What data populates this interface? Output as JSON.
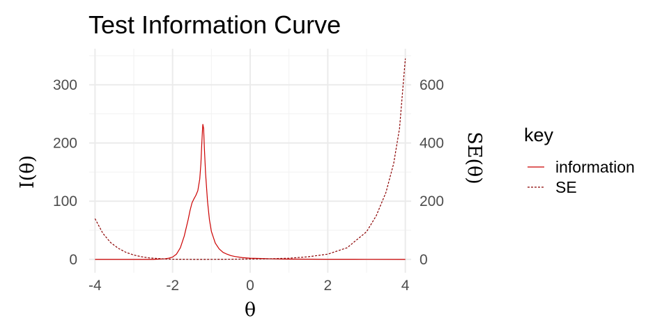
{
  "chart_data": {
    "type": "line",
    "title": "Test Information Curve",
    "xlabel": "θ",
    "ylabel_left": "I(θ)",
    "ylabel_right": "SE(θ)",
    "xlim": [
      -4.15,
      4.15
    ],
    "ylim_left": [
      -23,
      362
    ],
    "ylim_right": [
      -46,
      724
    ],
    "x_ticks": [
      -4,
      -2,
      0,
      2,
      4
    ],
    "x_tick_labels": [
      "-4",
      "-2",
      "0",
      "2",
      "4"
    ],
    "y_left_ticks": [
      0,
      100,
      200,
      300
    ],
    "y_left_tick_labels": [
      "0",
      "100",
      "200",
      "300"
    ],
    "y_right_ticks": [
      0,
      200,
      400,
      600
    ],
    "y_right_tick_labels": [
      "0",
      "200",
      "400",
      "600"
    ],
    "grid": true,
    "legend_title": "key",
    "legend_position": "right",
    "series": [
      {
        "name": "information",
        "axis": "left",
        "color": "#cc0000",
        "line_style": "solid",
        "x": [
          -4,
          -3,
          -2.5,
          -2.2,
          -2.1,
          -2.0,
          -1.9,
          -1.8,
          -1.7,
          -1.6,
          -1.55,
          -1.5,
          -1.45,
          -1.4,
          -1.35,
          -1.3,
          -1.27,
          -1.25,
          -1.23,
          -1.22,
          -1.2,
          -1.18,
          -1.15,
          -1.1,
          -1.05,
          -1.0,
          -0.9,
          -0.8,
          -0.7,
          -0.6,
          -0.5,
          -0.4,
          -0.2,
          0,
          0.5,
          1,
          2,
          3,
          4
        ],
        "y": [
          0,
          0,
          0,
          1,
          2,
          4,
          9,
          20,
          40,
          68,
          84,
          97,
          104,
          110,
          118,
          138,
          165,
          195,
          222,
          232,
          225,
          190,
          148,
          100,
          68,
          48,
          28,
          18,
          12,
          9,
          6.5,
          5,
          3,
          2,
          1,
          0.5,
          0.2,
          0.1,
          0
        ]
      },
      {
        "name": "SE",
        "axis": "right",
        "color": "#8b0000",
        "line_style": "dashed",
        "x": [
          -4,
          -3.8,
          -3.6,
          -3.4,
          -3.2,
          -3.0,
          -2.8,
          -2.6,
          -2.4,
          -2.2,
          -2.0,
          -1.5,
          -1.2,
          -1.0,
          -0.5,
          0,
          0.5,
          1.0,
          1.5,
          2.0,
          2.5,
          3.0,
          3.25,
          3.5,
          3.7,
          3.85,
          4.0
        ],
        "y": [
          140,
          90,
          58,
          38,
          24,
          15,
          9,
          5,
          3,
          1.5,
          0.5,
          0.1,
          0.07,
          0.15,
          0.5,
          1.2,
          2,
          4,
          9,
          18,
          40,
          95,
          150,
          230,
          330,
          450,
          690
        ]
      }
    ]
  }
}
